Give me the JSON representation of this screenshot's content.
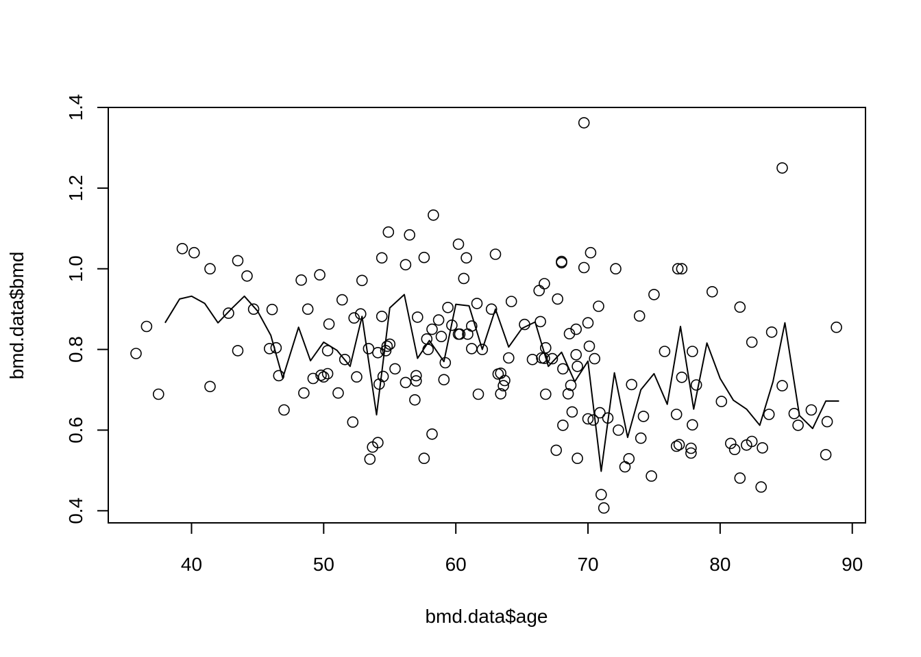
{
  "chart_data": {
    "type": "scatter",
    "xlabel": "bmd.data$age",
    "ylabel": "bmd.data$bmd",
    "xlim": [
      33.7,
      91
    ],
    "ylim": [
      0.37,
      1.4
    ],
    "x_ticks": [
      40,
      50,
      60,
      70,
      80,
      90
    ],
    "y_ticks": [
      0.4,
      0.6,
      0.8,
      1.0,
      1.2,
      1.4
    ],
    "x_tick_labels": [
      "40",
      "50",
      "60",
      "70",
      "80",
      "90"
    ],
    "y_tick_labels": [
      "0.4",
      "0.6",
      "0.8",
      "1.0",
      "1.2",
      "1.4"
    ],
    "grid": false,
    "colors": {
      "ink": "#000000",
      "background": "#ffffff"
    },
    "series": [
      {
        "type": "scatter",
        "marker": "open-circle",
        "points": [
          [
            35.8,
            0.79
          ],
          [
            36.6,
            0.857
          ],
          [
            37.5,
            0.689
          ],
          [
            39.3,
            1.05
          ],
          [
            40.2,
            1.04
          ],
          [
            41.4,
            1.0
          ],
          [
            41.4,
            0.708
          ],
          [
            42.8,
            0.89
          ],
          [
            43.5,
            1.02
          ],
          [
            43.5,
            0.797
          ],
          [
            44.2,
            0.982
          ],
          [
            44.7,
            0.9
          ],
          [
            45.9,
            0.802
          ],
          [
            46.1,
            0.899
          ],
          [
            46.4,
            0.804
          ],
          [
            46.6,
            0.735
          ],
          [
            47.0,
            0.65
          ],
          [
            48.3,
            0.972
          ],
          [
            48.5,
            0.692
          ],
          [
            48.8,
            0.9
          ],
          [
            49.2,
            0.728
          ],
          [
            49.7,
            0.985
          ],
          [
            49.8,
            0.736
          ],
          [
            50.3,
            0.74
          ],
          [
            50.0,
            0.732
          ],
          [
            50.3,
            0.797
          ],
          [
            50.4,
            0.863
          ],
          [
            51.1,
            0.692
          ],
          [
            51.4,
            0.923
          ],
          [
            51.6,
            0.775
          ],
          [
            52.3,
            0.878
          ],
          [
            52.5,
            0.732
          ],
          [
            52.2,
            0.62
          ],
          [
            52.8,
            0.888
          ],
          [
            52.9,
            0.971
          ],
          [
            53.4,
            0.802
          ],
          [
            53.5,
            0.528
          ],
          [
            53.7,
            0.558
          ],
          [
            54.1,
            0.792
          ],
          [
            54.1,
            0.569
          ],
          [
            54.2,
            0.714
          ],
          [
            54.4,
            1.027
          ],
          [
            54.4,
            0.882
          ],
          [
            54.5,
            0.733
          ],
          [
            54.8,
            0.808
          ],
          [
            54.7,
            0.797
          ],
          [
            54.9,
            1.091
          ],
          [
            55.0,
            0.813
          ],
          [
            55.4,
            0.752
          ],
          [
            56.2,
            1.01
          ],
          [
            56.2,
            0.718
          ],
          [
            56.5,
            1.084
          ],
          [
            56.9,
            0.675
          ],
          [
            57.0,
            0.735
          ],
          [
            57.0,
            0.722
          ],
          [
            57.1,
            0.88
          ],
          [
            57.6,
            1.028
          ],
          [
            57.6,
            0.53
          ],
          [
            57.8,
            0.826
          ],
          [
            57.9,
            0.8
          ],
          [
            58.2,
            0.85
          ],
          [
            58.2,
            0.59
          ],
          [
            58.3,
            1.133
          ],
          [
            58.7,
            0.873
          ],
          [
            58.9,
            0.832
          ],
          [
            59.1,
            0.725
          ],
          [
            59.2,
            0.767
          ],
          [
            59.4,
            0.904
          ],
          [
            59.7,
            0.86
          ],
          [
            60.2,
            0.838
          ],
          [
            60.3,
            0.838
          ],
          [
            60.2,
            1.061
          ],
          [
            60.6,
            0.976
          ],
          [
            60.8,
            1.027
          ],
          [
            60.9,
            0.838
          ],
          [
            61.2,
            0.858
          ],
          [
            61.2,
            0.802
          ],
          [
            61.6,
            0.914
          ],
          [
            61.7,
            0.689
          ],
          [
            62.0,
            0.8
          ],
          [
            62.7,
            0.9
          ],
          [
            63.0,
            1.036
          ],
          [
            63.2,
            0.739
          ],
          [
            63.4,
            0.741
          ],
          [
            63.4,
            0.69
          ],
          [
            63.6,
            0.71
          ],
          [
            63.7,
            0.723
          ],
          [
            64.0,
            0.779
          ],
          [
            64.2,
            0.919
          ],
          [
            65.2,
            0.862
          ],
          [
            65.8,
            0.775
          ],
          [
            66.3,
            0.946
          ],
          [
            66.4,
            0.869
          ],
          [
            66.5,
            0.779
          ],
          [
            66.7,
            0.963
          ],
          [
            66.7,
            0.778
          ],
          [
            66.8,
            0.804
          ],
          [
            66.8,
            0.689
          ],
          [
            67.3,
            0.777
          ],
          [
            67.6,
            0.55
          ],
          [
            67.7,
            0.925
          ],
          [
            68.0,
            1.018
          ],
          [
            68.0,
            1.015
          ],
          [
            68.1,
            0.752
          ],
          [
            68.1,
            0.612
          ],
          [
            68.5,
            0.69
          ],
          [
            68.6,
            0.839
          ],
          [
            68.7,
            0.711
          ],
          [
            68.8,
            0.645
          ],
          [
            69.1,
            0.85
          ],
          [
            69.1,
            0.787
          ],
          [
            69.2,
            0.758
          ],
          [
            69.2,
            0.53
          ],
          [
            69.7,
            1.003
          ],
          [
            69.7,
            1.362
          ],
          [
            70.0,
            0.628
          ],
          [
            70.0,
            0.866
          ],
          [
            70.1,
            0.808
          ],
          [
            70.2,
            1.04
          ],
          [
            70.4,
            0.625
          ],
          [
            70.5,
            0.777
          ],
          [
            70.8,
            0.907
          ],
          [
            70.9,
            0.643
          ],
          [
            71.0,
            0.44
          ],
          [
            71.2,
            0.407
          ],
          [
            71.5,
            0.63
          ],
          [
            72.1,
            1.0
          ],
          [
            72.3,
            0.6
          ],
          [
            72.8,
            0.509
          ],
          [
            73.1,
            0.529
          ],
          [
            73.3,
            0.713
          ],
          [
            73.9,
            0.883
          ],
          [
            74.0,
            0.58
          ],
          [
            74.2,
            0.634
          ],
          [
            74.8,
            0.486
          ],
          [
            75.0,
            0.936
          ],
          [
            75.8,
            0.795
          ],
          [
            76.7,
            0.639
          ],
          [
            76.8,
            1.0
          ],
          [
            76.7,
            0.56
          ],
          [
            76.9,
            0.564
          ],
          [
            77.1,
            1.0
          ],
          [
            77.1,
            0.731
          ],
          [
            77.8,
            0.543
          ],
          [
            77.8,
            0.555
          ],
          [
            77.9,
            0.613
          ],
          [
            77.9,
            0.795
          ],
          [
            78.2,
            0.712
          ],
          [
            79.4,
            0.943
          ],
          [
            80.1,
            0.671
          ],
          [
            80.8,
            0.567
          ],
          [
            81.1,
            0.552
          ],
          [
            81.5,
            0.905
          ],
          [
            81.5,
            0.481
          ],
          [
            82.0,
            0.563
          ],
          [
            82.4,
            0.818
          ],
          [
            82.4,
            0.572
          ],
          [
            83.1,
            0.459
          ],
          [
            83.2,
            0.556
          ],
          [
            83.7,
            0.639
          ],
          [
            83.9,
            0.843
          ],
          [
            84.7,
            0.71
          ],
          [
            84.7,
            1.25
          ],
          [
            85.6,
            0.641
          ],
          [
            85.9,
            0.612
          ],
          [
            86.9,
            0.65
          ],
          [
            88.0,
            0.539
          ],
          [
            88.1,
            0.621
          ],
          [
            88.8,
            0.855
          ]
        ]
      },
      {
        "type": "line",
        "points": [
          [
            38.0,
            0.866
          ],
          [
            39.1,
            0.925
          ],
          [
            40.0,
            0.932
          ],
          [
            41.0,
            0.914
          ],
          [
            42.0,
            0.866
          ],
          [
            43.0,
            0.9
          ],
          [
            44.0,
            0.932
          ],
          [
            45.0,
            0.895
          ],
          [
            46.0,
            0.835
          ],
          [
            46.9,
            0.729
          ],
          [
            48.1,
            0.855
          ],
          [
            49.0,
            0.772
          ],
          [
            50.0,
            0.818
          ],
          [
            51.0,
            0.798
          ],
          [
            52.0,
            0.758
          ],
          [
            52.9,
            0.882
          ],
          [
            54.0,
            0.638
          ],
          [
            55.0,
            0.903
          ],
          [
            56.1,
            0.936
          ],
          [
            57.1,
            0.778
          ],
          [
            58.0,
            0.822
          ],
          [
            59.1,
            0.77
          ],
          [
            60.0,
            0.912
          ],
          [
            61.0,
            0.908
          ],
          [
            62.0,
            0.8
          ],
          [
            63.0,
            0.9
          ],
          [
            64.0,
            0.806
          ],
          [
            65.0,
            0.852
          ],
          [
            66.0,
            0.868
          ],
          [
            67.0,
            0.758
          ],
          [
            68.0,
            0.793
          ],
          [
            69.0,
            0.72
          ],
          [
            70.0,
            0.771
          ],
          [
            71.0,
            0.498
          ],
          [
            72.0,
            0.742
          ],
          [
            73.0,
            0.582
          ],
          [
            74.0,
            0.7
          ],
          [
            75.0,
            0.74
          ],
          [
            76.0,
            0.664
          ],
          [
            77.0,
            0.857
          ],
          [
            78.0,
            0.652
          ],
          [
            79.0,
            0.816
          ],
          [
            80.0,
            0.728
          ],
          [
            81.0,
            0.674
          ],
          [
            82.0,
            0.652
          ],
          [
            83.0,
            0.612
          ],
          [
            84.0,
            0.72
          ],
          [
            84.9,
            0.866
          ],
          [
            86.0,
            0.636
          ],
          [
            87.0,
            0.604
          ],
          [
            88.0,
            0.672
          ],
          [
            89.0,
            0.672
          ]
        ]
      }
    ]
  }
}
